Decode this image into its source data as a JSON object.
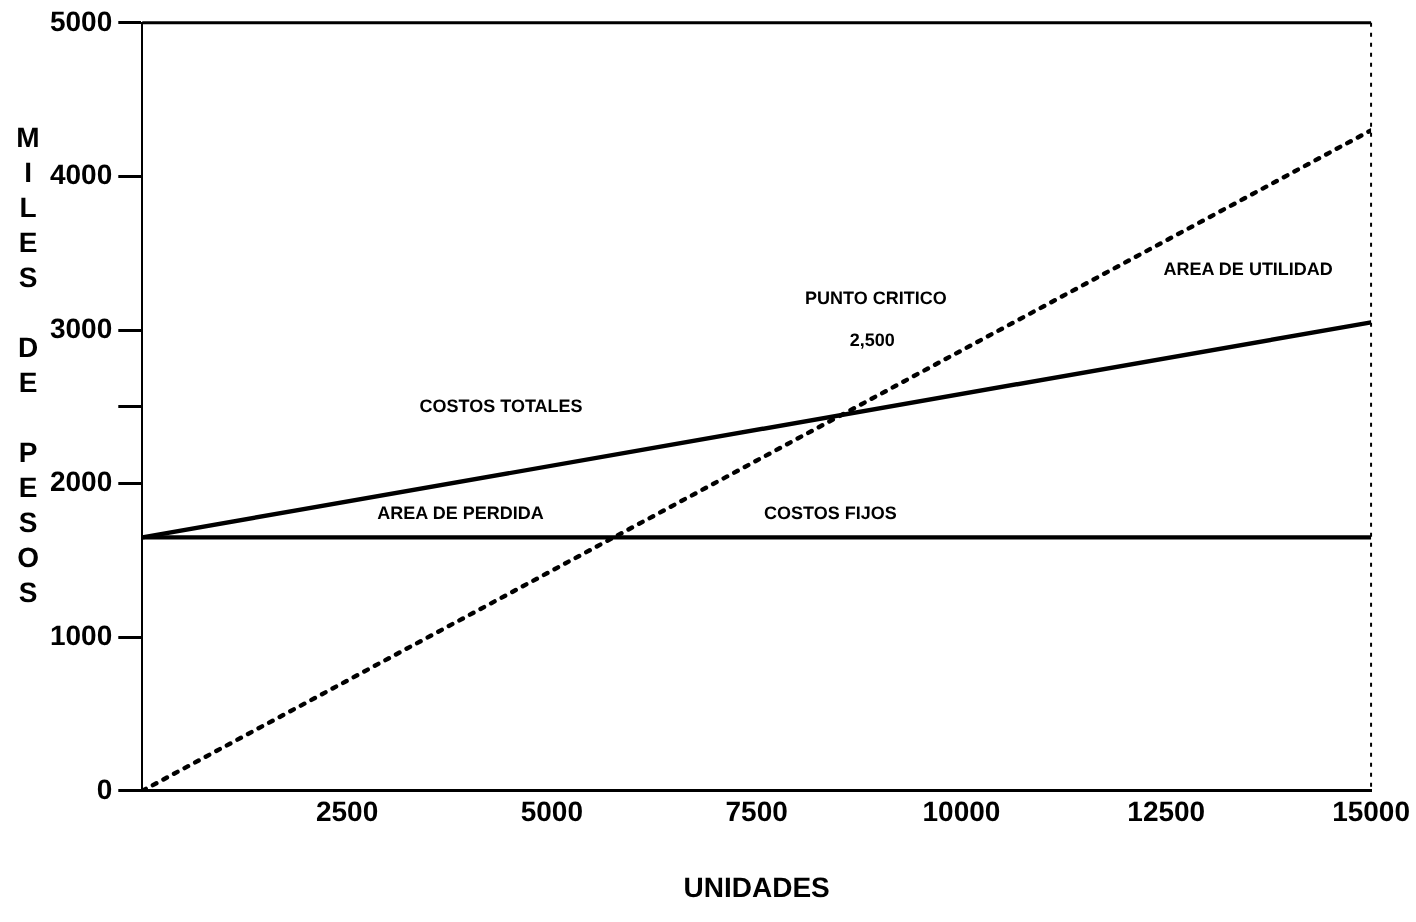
{
  "chart_data": {
    "type": "line",
    "xlabel": "UNIDADES",
    "ylabel": "MILES DE PESOS",
    "x": [
      0,
      15000
    ],
    "series": [
      {
        "color": "#000000",
        "values": [
          1650,
          1650
        ],
        "line_style": "solid"
      },
      {
        "color": "#000000",
        "values": [
          1650,
          3050
        ],
        "line_style": "solid"
      },
      {
        "color": "#000000",
        "values": [
          0,
          4300
        ],
        "line_style": "dotted"
      }
    ],
    "xlim": [
      0,
      15000
    ],
    "xticks": [
      2500,
      5000,
      7500,
      10000,
      12500,
      15000
    ],
    "ylim": [
      0,
      5000
    ],
    "yticks": [
      0,
      1000,
      2000,
      {
        "value": 2500,
        "label": null
      },
      3000,
      4000,
      5000
    ],
    "grid": false,
    "legend": false,
    "marker": "none",
    "annotations": [
      "PUNTO CRITICO",
      "2,500",
      "AREA DE UTILIDAD",
      "COSTOS TOTALES",
      "AREA DE PERDIDA",
      "COSTOS FIJOS"
    ]
  }
}
